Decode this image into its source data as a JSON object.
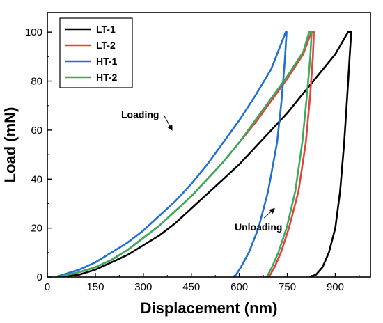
{
  "chart_data": {
    "type": "line",
    "xlabel": "Displacement (nm)",
    "ylabel": "Load (mN)",
    "xlim": [
      0,
      1010
    ],
    "ylim": [
      0,
      108
    ],
    "xticks": [
      0,
      150,
      300,
      450,
      600,
      750,
      900
    ],
    "yticks": [
      0,
      20,
      40,
      60,
      80,
      100
    ],
    "grid": false,
    "legend_position": "top-left",
    "series": [
      {
        "name": "LT-1",
        "color": "#000000",
        "loading": [
          [
            40,
            0
          ],
          [
            100,
            1
          ],
          [
            150,
            3
          ],
          [
            200,
            6
          ],
          [
            250,
            9
          ],
          [
            300,
            13
          ],
          [
            350,
            17
          ],
          [
            400,
            22
          ],
          [
            450,
            28
          ],
          [
            500,
            34
          ],
          [
            550,
            40
          ],
          [
            600,
            46
          ],
          [
            650,
            53
          ],
          [
            700,
            60
          ],
          [
            750,
            67
          ],
          [
            800,
            75
          ],
          [
            850,
            83
          ],
          [
            900,
            91
          ],
          [
            940,
            100
          ]
        ],
        "unloading": [
          [
            950,
            100
          ],
          [
            945,
            90
          ],
          [
            938,
            75
          ],
          [
            928,
            55
          ],
          [
            915,
            35
          ],
          [
            900,
            20
          ],
          [
            880,
            10
          ],
          [
            860,
            4
          ],
          [
            840,
            1
          ],
          [
            820,
            0
          ]
        ]
      },
      {
        "name": "LT-2",
        "color": "#e8413c",
        "loading": [
          [
            30,
            0
          ],
          [
            100,
            2
          ],
          [
            150,
            4
          ],
          [
            200,
            7
          ],
          [
            250,
            11
          ],
          [
            300,
            16
          ],
          [
            350,
            21
          ],
          [
            400,
            27
          ],
          [
            450,
            33
          ],
          [
            500,
            40
          ],
          [
            550,
            47
          ],
          [
            600,
            55
          ],
          [
            650,
            63
          ],
          [
            700,
            72
          ],
          [
            750,
            81
          ],
          [
            800,
            91
          ],
          [
            825,
            100
          ]
        ],
        "unloading": [
          [
            833,
            100
          ],
          [
            830,
            90
          ],
          [
            822,
            75
          ],
          [
            808,
            55
          ],
          [
            785,
            35
          ],
          [
            755,
            20
          ],
          [
            730,
            10
          ],
          [
            710,
            4
          ],
          [
            697,
            1
          ],
          [
            690,
            0
          ]
        ]
      },
      {
        "name": "HT-1",
        "color": "#1f6fd6",
        "loading": [
          [
            25,
            0
          ],
          [
            100,
            3
          ],
          [
            150,
            6
          ],
          [
            200,
            10
          ],
          [
            250,
            14
          ],
          [
            300,
            19
          ],
          [
            350,
            25
          ],
          [
            400,
            31
          ],
          [
            450,
            38
          ],
          [
            500,
            46
          ],
          [
            550,
            55
          ],
          [
            600,
            64
          ],
          [
            650,
            74
          ],
          [
            700,
            85
          ],
          [
            745,
            100
          ]
        ],
        "unloading": [
          [
            748,
            100
          ],
          [
            742,
            88
          ],
          [
            732,
            72
          ],
          [
            718,
            55
          ],
          [
            690,
            35
          ],
          [
            660,
            20
          ],
          [
            630,
            10
          ],
          [
            605,
            4
          ],
          [
            590,
            1
          ],
          [
            580,
            0
          ]
        ]
      },
      {
        "name": "HT-2",
        "color": "#3aaa5c",
        "loading": [
          [
            30,
            0
          ],
          [
            100,
            2
          ],
          [
            150,
            4
          ],
          [
            200,
            7
          ],
          [
            250,
            11
          ],
          [
            300,
            16
          ],
          [
            350,
            21
          ],
          [
            400,
            27
          ],
          [
            450,
            33
          ],
          [
            500,
            40
          ],
          [
            550,
            47
          ],
          [
            600,
            55
          ],
          [
            650,
            64
          ],
          [
            700,
            73
          ],
          [
            750,
            82
          ],
          [
            800,
            92
          ],
          [
            818,
            100
          ]
        ],
        "unloading": [
          [
            826,
            100
          ],
          [
            822,
            90
          ],
          [
            812,
            75
          ],
          [
            797,
            55
          ],
          [
            775,
            35
          ],
          [
            748,
            20
          ],
          [
            722,
            10
          ],
          [
            702,
            4
          ],
          [
            690,
            1
          ],
          [
            685,
            0
          ]
        ]
      }
    ],
    "annotations": [
      {
        "text": "Loading",
        "x": 290,
        "y": 65,
        "arrow_to": [
          390,
          60
        ]
      },
      {
        "text": "Unloading",
        "x": 660,
        "y": 19,
        "arrow_to": [
          710,
          28
        ]
      }
    ]
  }
}
